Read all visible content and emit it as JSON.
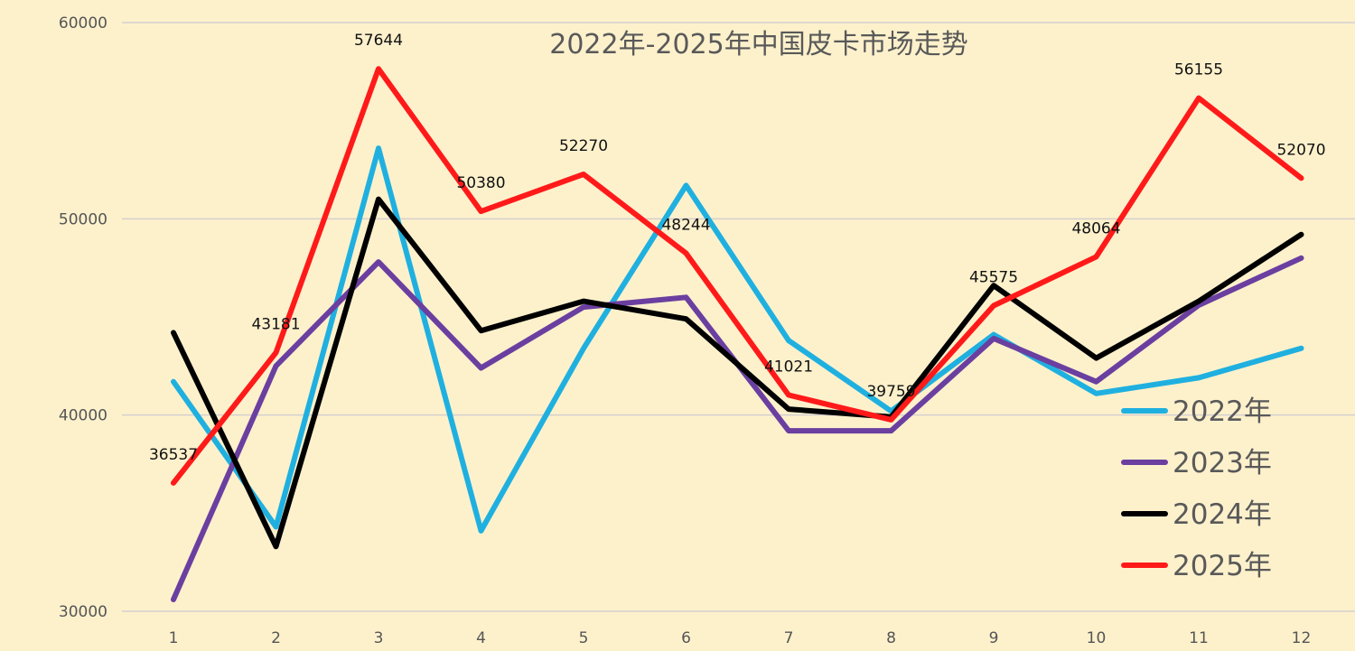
{
  "chart_data": {
    "type": "line",
    "title": "2022年-2025年中国皮卡市场走势",
    "xlabel": "",
    "ylabel": "",
    "categories": [
      "1",
      "2",
      "3",
      "4",
      "5",
      "6",
      "7",
      "8",
      "9",
      "10",
      "11",
      "12"
    ],
    "ylim": [
      30000,
      60000
    ],
    "yticks": [
      "30000",
      "40000",
      "50000",
      "60000"
    ],
    "grid": true,
    "legend_position": "bottom-right",
    "series": [
      {
        "name": "2022年",
        "color": "#1fb0e0",
        "values": [
          41700,
          34300,
          53600,
          34100,
          43400,
          51700,
          43800,
          40200,
          44100,
          41100,
          41900,
          43400
        ]
      },
      {
        "name": "2023年",
        "color": "#6a3fa0",
        "values": [
          30600,
          42500,
          47800,
          42400,
          45500,
          46000,
          39200,
          39200,
          43900,
          41700,
          45600,
          48000
        ]
      },
      {
        "name": "2024年",
        "color": "#000000",
        "values": [
          44200,
          33300,
          51000,
          44300,
          45800,
          44900,
          40300,
          39900,
          46600,
          42900,
          45800,
          49200
        ]
      },
      {
        "name": "2025年",
        "color": "#ff1a1a",
        "values": [
          36537,
          43181,
          57644,
          50380,
          52270,
          48244,
          41021,
          39759,
          45575,
          48064,
          56155,
          52070
        ],
        "data_labels": [
          "36537",
          "43181",
          "57644",
          "50380",
          "52270",
          "48244",
          "41021",
          "39759",
          "45575",
          "48064",
          "56155",
          "52070"
        ]
      }
    ]
  }
}
